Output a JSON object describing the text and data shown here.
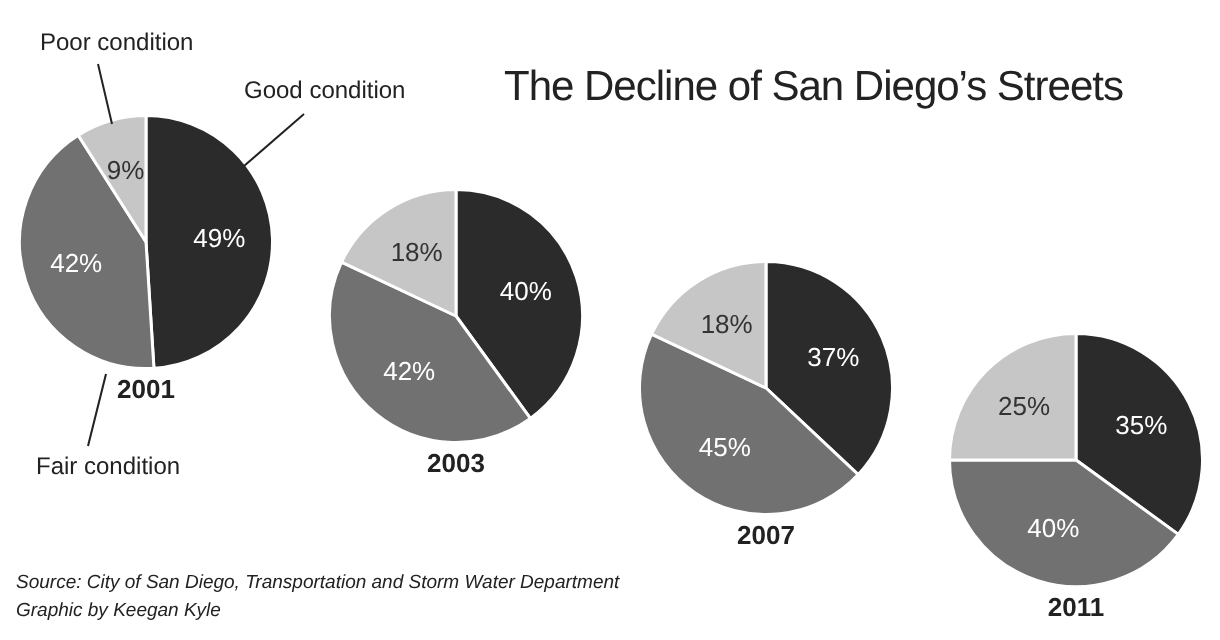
{
  "chart_data": [
    {
      "type": "pie",
      "title": "2001",
      "categories": [
        "Good condition",
        "Fair condition",
        "Poor condition"
      ],
      "values": [
        49,
        42,
        9
      ],
      "colors": [
        "#2b2b2b",
        "#717171",
        "#c6c6c6"
      ],
      "value_labels": [
        "49%",
        "42%",
        "9%"
      ]
    },
    {
      "type": "pie",
      "title": "2003",
      "categories": [
        null,
        null,
        null
      ],
      "values": [
        40,
        42,
        18
      ],
      "colors": [
        "#2b2b2b",
        "#717171",
        "#c6c6c6"
      ],
      "value_labels": [
        "40%",
        "42%",
        "18%"
      ]
    },
    {
      "type": "pie",
      "title": "2007",
      "categories": [
        null,
        null,
        null
      ],
      "values": [
        37,
        45,
        18
      ],
      "colors": [
        "#2b2b2b",
        "#717171",
        "#c6c6c6"
      ],
      "value_labels": [
        "37%",
        "45%",
        "18%"
      ]
    },
    {
      "type": "pie",
      "title": "2011",
      "categories": [
        null,
        null,
        null
      ],
      "values": [
        35,
        40,
        25
      ],
      "colors": [
        "#2b2b2b",
        "#717171",
        "#c6c6c6"
      ],
      "value_labels": [
        "35%",
        "40%",
        "25%"
      ]
    },
    {
      "type": "other",
      "title": "The Decline of San Diego’s Streets",
      "annotations": [
        "Source: City of San Diego, Transportation and Storm Water Department",
        "Graphic by Keegan Kyle"
      ]
    }
  ]
}
